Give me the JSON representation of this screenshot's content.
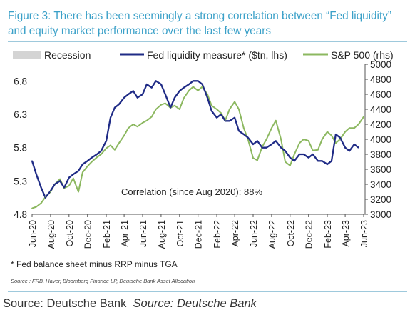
{
  "title_line1": "Figure 3: There has been seemingly a strong correlation between “Fed liquidity”",
  "title_line2": "and equity market performance over the last few years",
  "footnote": "* Fed balance sheet minus RRP minus TGA",
  "source_small": "Source : FRB, Haver, Bloomberg Finance LP, Deutsche Bank Asset Allocation",
  "caption_plain": "Source: Deutsche Bank",
  "caption_italic": "Source: Deutsche Bank",
  "colors": {
    "title": "#3aa0c8",
    "fed": "#1f2b86",
    "sp": "#8cb860",
    "recession": "#d4d4d4"
  },
  "chart_data": {
    "type": "line",
    "legend": [
      {
        "name": "Recession",
        "kind": "area",
        "color": "#d4d4d4"
      },
      {
        "name": "Fed liquidity measure* ($tn, lhs)",
        "kind": "line",
        "color": "#1f2b86"
      },
      {
        "name": "S&P 500 (rhs)",
        "kind": "line",
        "color": "#8cb860"
      }
    ],
    "annotation": "Correlation (since Aug 2020): 88%",
    "x_tick_labels": [
      "Jun-20",
      "Aug-20",
      "Oct-20",
      "Dec-20",
      "Feb-21",
      "Apr-21",
      "Jun-21",
      "Aug-21",
      "Oct-21",
      "Dec-21",
      "Feb-22",
      "Apr-22",
      "Jun-22",
      "Aug-22",
      "Oct-22",
      "Dec-22",
      "Feb-23",
      "Apr-23",
      "Jun-23"
    ],
    "y_left": {
      "ticks": [
        4.8,
        5.3,
        5.8,
        6.3,
        6.8
      ],
      "ylim": [
        4.8,
        7.05
      ]
    },
    "y_right": {
      "ticks": [
        3000,
        3200,
        3400,
        3600,
        3800,
        4000,
        4200,
        4400,
        4600,
        4800,
        5000
      ],
      "ylim": [
        3000,
        5000
      ]
    },
    "grid": false,
    "series": [
      {
        "name": "Fed liquidity measure* ($tn, lhs)",
        "axis": "left",
        "x": [
          "2020-06-01",
          "2020-06-15",
          "2020-07-01",
          "2020-07-15",
          "2020-08-01",
          "2020-08-15",
          "2020-09-01",
          "2020-09-15",
          "2020-10-01",
          "2020-10-15",
          "2020-11-01",
          "2020-11-15",
          "2020-12-01",
          "2020-12-15",
          "2021-01-01",
          "2021-01-15",
          "2021-02-01",
          "2021-02-15",
          "2021-03-01",
          "2021-03-15",
          "2021-04-01",
          "2021-04-15",
          "2021-05-01",
          "2021-05-15",
          "2021-06-01",
          "2021-06-15",
          "2021-07-01",
          "2021-07-15",
          "2021-08-01",
          "2021-08-15",
          "2021-09-01",
          "2021-09-15",
          "2021-10-01",
          "2021-10-15",
          "2021-11-01",
          "2021-11-15",
          "2021-12-01",
          "2021-12-15",
          "2022-01-01",
          "2022-01-15",
          "2022-02-01",
          "2022-02-15",
          "2022-03-01",
          "2022-03-15",
          "2022-04-01",
          "2022-04-15",
          "2022-05-01",
          "2022-05-15",
          "2022-06-01",
          "2022-06-15",
          "2022-07-01",
          "2022-07-15",
          "2022-08-01",
          "2022-08-15",
          "2022-09-01",
          "2022-09-15",
          "2022-10-01",
          "2022-10-15",
          "2022-11-01",
          "2022-11-15",
          "2022-12-01",
          "2022-12-15",
          "2023-01-01",
          "2023-01-15",
          "2023-02-01",
          "2023-02-15",
          "2023-03-01",
          "2023-03-15",
          "2023-04-01",
          "2023-04-15",
          "2023-05-01",
          "2023-05-15"
        ],
        "y": [
          5.6,
          5.4,
          5.2,
          5.05,
          5.15,
          5.25,
          5.3,
          5.2,
          5.35,
          5.4,
          5.45,
          5.55,
          5.6,
          5.65,
          5.7,
          5.75,
          5.9,
          6.25,
          6.4,
          6.45,
          6.55,
          6.6,
          6.65,
          6.55,
          6.6,
          6.75,
          6.7,
          6.8,
          6.75,
          6.6,
          6.4,
          6.55,
          6.65,
          6.7,
          6.75,
          6.8,
          6.8,
          6.75,
          6.55,
          6.35,
          6.25,
          6.3,
          6.2,
          6.2,
          6.25,
          6.05,
          6.0,
          5.95,
          5.85,
          5.9,
          5.8,
          5.8,
          5.85,
          5.9,
          5.8,
          5.75,
          5.65,
          5.6,
          5.7,
          5.7,
          5.65,
          5.7,
          5.6,
          5.6,
          5.55,
          5.6,
          6.0,
          5.95,
          5.8,
          5.75,
          5.85,
          5.8
        ]
      },
      {
        "name": "S&P 500 (rhs)",
        "axis": "right",
        "x": [
          "2020-06-01",
          "2020-06-15",
          "2020-07-01",
          "2020-07-15",
          "2020-08-01",
          "2020-08-15",
          "2020-09-01",
          "2020-09-15",
          "2020-10-01",
          "2020-10-15",
          "2020-11-01",
          "2020-11-15",
          "2020-12-01",
          "2020-12-15",
          "2021-01-01",
          "2021-01-15",
          "2021-02-01",
          "2021-02-15",
          "2021-03-01",
          "2021-03-15",
          "2021-04-01",
          "2021-04-15",
          "2021-05-01",
          "2021-05-15",
          "2021-06-01",
          "2021-06-15",
          "2021-07-01",
          "2021-07-15",
          "2021-08-01",
          "2021-08-15",
          "2021-09-01",
          "2021-09-15",
          "2021-10-01",
          "2021-10-15",
          "2021-11-01",
          "2021-11-15",
          "2021-12-01",
          "2021-12-15",
          "2022-01-01",
          "2022-01-15",
          "2022-02-01",
          "2022-02-15",
          "2022-03-01",
          "2022-03-15",
          "2022-04-01",
          "2022-04-15",
          "2022-05-01",
          "2022-05-15",
          "2022-06-01",
          "2022-06-15",
          "2022-07-01",
          "2022-07-15",
          "2022-08-01",
          "2022-08-15",
          "2022-09-01",
          "2022-09-15",
          "2022-10-01",
          "2022-10-15",
          "2022-11-01",
          "2022-11-15",
          "2022-12-01",
          "2022-12-15",
          "2023-01-01",
          "2023-01-15",
          "2023-02-01",
          "2023-02-15",
          "2023-03-01",
          "2023-03-15",
          "2023-04-01",
          "2023-04-15",
          "2023-05-01",
          "2023-05-15",
          "2023-06-01"
        ],
        "y": [
          3080,
          3100,
          3150,
          3230,
          3300,
          3400,
          3470,
          3350,
          3380,
          3480,
          3300,
          3560,
          3640,
          3700,
          3760,
          3800,
          3880,
          3920,
          3860,
          3950,
          4050,
          4150,
          4200,
          4170,
          4220,
          4250,
          4300,
          4400,
          4460,
          4480,
          4420,
          4450,
          4400,
          4550,
          4650,
          4700,
          4650,
          4700,
          4600,
          4450,
          4400,
          4350,
          4250,
          4400,
          4500,
          4400,
          4150,
          4000,
          3750,
          3720,
          3900,
          4000,
          4150,
          4250,
          4000,
          3700,
          3650,
          3800,
          3950,
          4000,
          3980,
          3850,
          3860,
          4000,
          4100,
          4050,
          3950,
          4000,
          4100,
          4150,
          4150,
          4200,
          4300
        ]
      }
    ]
  }
}
